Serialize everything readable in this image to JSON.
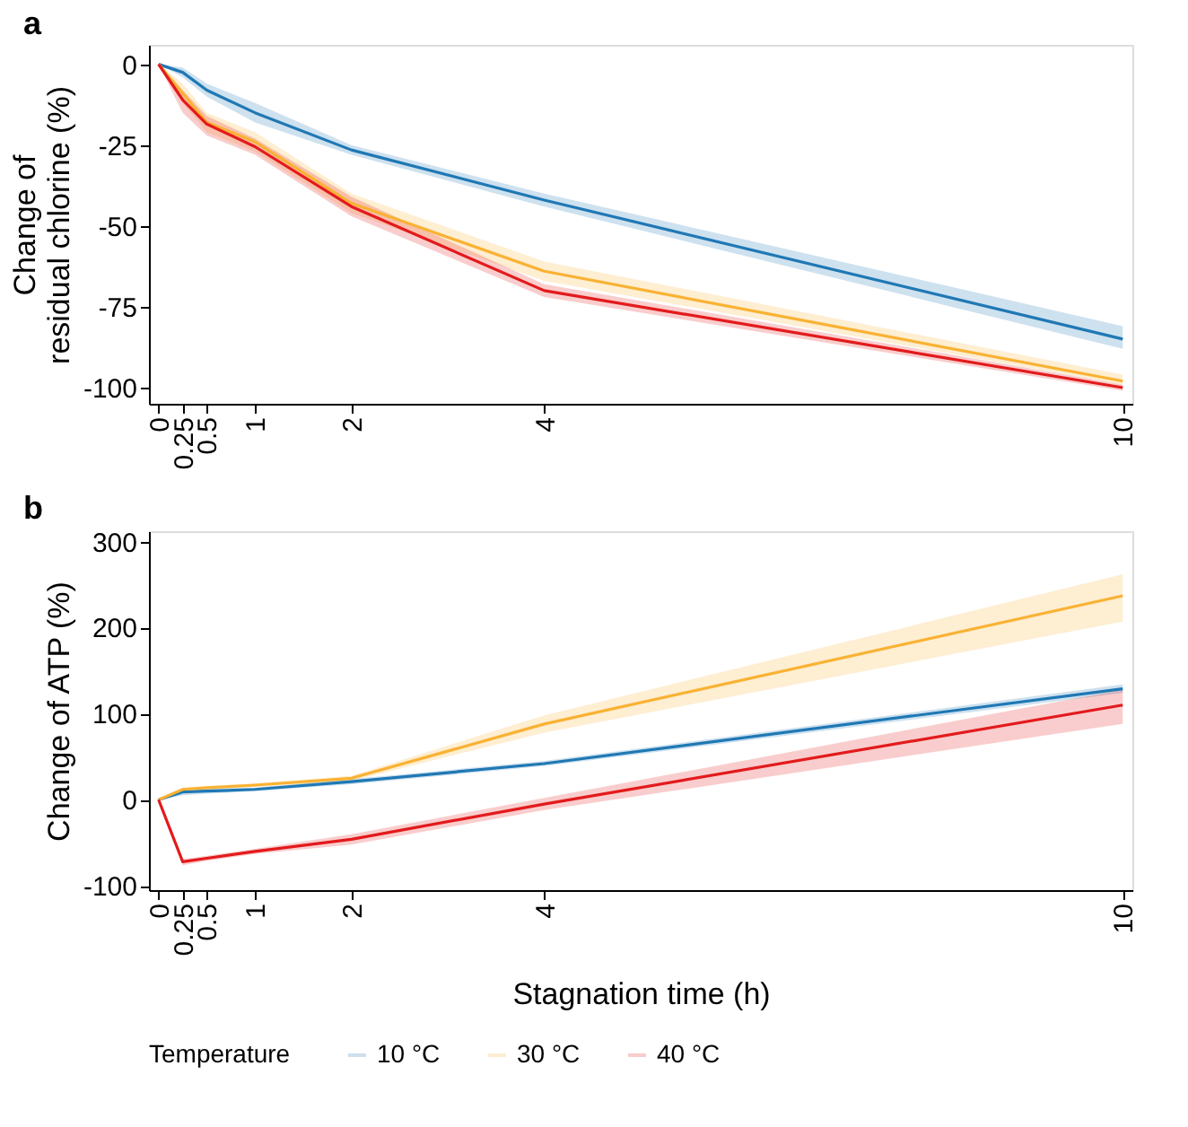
{
  "chart_data": [
    {
      "type": "line",
      "title": "a",
      "ylabel": "Change of\nresidual chlorine (%)",
      "x": [
        0,
        0.25,
        0.5,
        1,
        2,
        4,
        10
      ],
      "xlim": [
        -0.1,
        10.1
      ],
      "xticks": [
        0,
        0.25,
        0.5,
        1,
        2,
        4,
        10
      ],
      "ylim": [
        -105,
        6
      ],
      "yticks": [
        0,
        -25,
        -50,
        -75,
        -100
      ],
      "grid": false,
      "legend": "bottom",
      "line_style": "solid",
      "marker": "none",
      "series": [
        {
          "name": "10 °C",
          "color": "#1f78b4",
          "values": [
            0,
            -2.5,
            -8,
            -15,
            -26.5,
            -42,
            -85
          ],
          "lower": [
            0,
            -4,
            -10,
            -18,
            -28,
            -44,
            -88
          ],
          "upper": [
            0,
            -1,
            -6,
            -12,
            -25,
            -40,
            -81
          ]
        },
        {
          "name": "30 °C",
          "color": "#f9b233",
          "values": [
            0,
            -9,
            -18,
            -24,
            -43,
            -64,
            -98
          ],
          "lower": [
            0,
            -12,
            -21,
            -27,
            -46,
            -67,
            -99
          ],
          "upper": [
            0,
            -6,
            -15,
            -21,
            -40,
            -61,
            -96
          ]
        },
        {
          "name": "40 °C",
          "color": "#e31a1c",
          "values": [
            0,
            -11,
            -18.5,
            -25.5,
            -44,
            -70,
            -100
          ],
          "lower": [
            0,
            -15,
            -22,
            -28,
            -47,
            -72,
            -101
          ],
          "upper": [
            0,
            -8,
            -16,
            -23,
            -41,
            -68,
            -99
          ]
        }
      ]
    },
    {
      "type": "line",
      "title": "b",
      "ylabel": "Change of ATP (%)",
      "xlabel": "Stagnation time (h)",
      "legend_title": "Temperature",
      "x": [
        0,
        0.25,
        0.5,
        1,
        2,
        4,
        10
      ],
      "xlim": [
        -0.1,
        10.1
      ],
      "xticks": [
        0,
        0.25,
        0.5,
        1,
        2,
        4,
        10
      ],
      "ylim": [
        -105,
        312
      ],
      "yticks": [
        -100,
        0,
        100,
        200,
        300
      ],
      "grid": false,
      "legend": "bottom",
      "line_style": "solid",
      "marker": "none",
      "series": [
        {
          "name": "10 °C",
          "color": "#1f78b4",
          "values": [
            0,
            9,
            10,
            12,
            21,
            42,
            129
          ],
          "lower": [
            0,
            5,
            7,
            10,
            18,
            39,
            124
          ],
          "upper": [
            0,
            13,
            13,
            14,
            24,
            45,
            134
          ]
        },
        {
          "name": "30 °C",
          "color": "#f9b233",
          "values": [
            0,
            12,
            14,
            17,
            25,
            88,
            237
          ],
          "lower": [
            0,
            10,
            12,
            15,
            22,
            78,
            207
          ],
          "upper": [
            0,
            14,
            16,
            19,
            28,
            98,
            262
          ]
        },
        {
          "name": "40 °C",
          "color": "#e31a1c",
          "values": [
            0,
            -72,
            -68,
            -60,
            -46,
            -5,
            110
          ],
          "lower": [
            0,
            -76,
            -71,
            -63,
            -52,
            -12,
            88
          ],
          "upper": [
            0,
            -69,
            -65,
            -57,
            -40,
            2,
            128
          ]
        }
      ]
    }
  ]
}
